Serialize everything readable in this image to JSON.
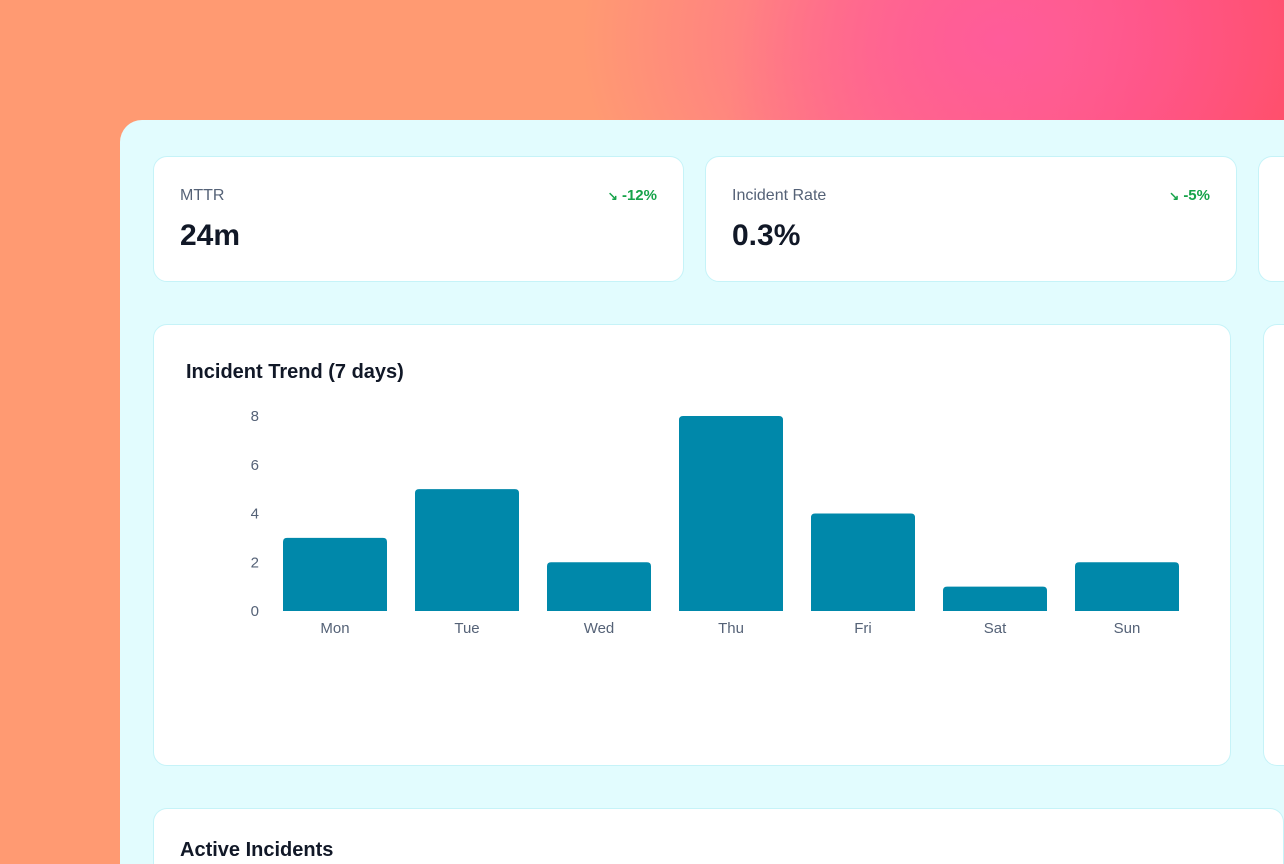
{
  "kpis": [
    {
      "label": "MTTR",
      "value": "24m",
      "delta": "-12%",
      "trend_icon": "trending-down-icon"
    },
    {
      "label": "Incident Rate",
      "value": "0.3%",
      "delta": "-5%",
      "trend_icon": "trending-down-icon"
    }
  ],
  "colors": {
    "bar": "#0088aa",
    "positive_delta": "#16a34a",
    "panel": "#e2fcfe"
  },
  "chart_data": {
    "type": "bar",
    "title": "Incident Trend (7 days)",
    "categories": [
      "Mon",
      "Tue",
      "Wed",
      "Thu",
      "Fri",
      "Sat",
      "Sun"
    ],
    "values": [
      3,
      5,
      2,
      8,
      4,
      1,
      2
    ],
    "yticks": [
      0,
      2,
      4,
      6,
      8
    ],
    "ylim": [
      0,
      8
    ],
    "grid": false,
    "xlabel": "",
    "ylabel": ""
  },
  "active_incidents": {
    "title": "Active Incidents"
  }
}
